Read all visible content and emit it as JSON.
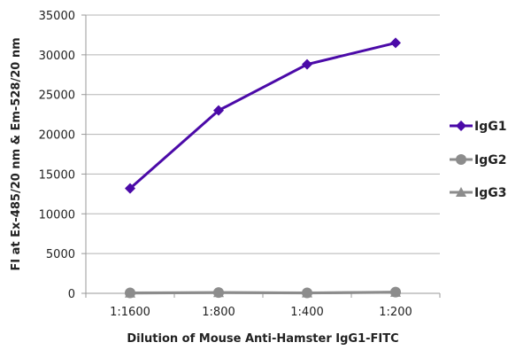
{
  "chart_data": {
    "type": "line",
    "title": "",
    "xlabel": "Dilution of Mouse Anti-Hamster IgG1-FITC",
    "ylabel": "FI at Ex-485/20 nm & Em-528/20 nm",
    "categories": [
      "1:1600",
      "1:800",
      "1:400",
      "1:200"
    ],
    "ylim": [
      0,
      35000
    ],
    "yticks": [
      0,
      5000,
      10000,
      15000,
      20000,
      25000,
      30000,
      35000
    ],
    "grid": true,
    "legend_position": "right",
    "series": [
      {
        "name": "IgG1",
        "values": [
          13200,
          23000,
          28800,
          31500
        ],
        "color": "#4b0aa8",
        "marker": "diamond"
      },
      {
        "name": "IgG2",
        "values": [
          50,
          100,
          50,
          150
        ],
        "color": "#8c8c8c",
        "marker": "circle"
      },
      {
        "name": "IgG3",
        "values": [
          30,
          80,
          40,
          120
        ],
        "color": "#8c8c8c",
        "marker": "triangle"
      }
    ]
  }
}
